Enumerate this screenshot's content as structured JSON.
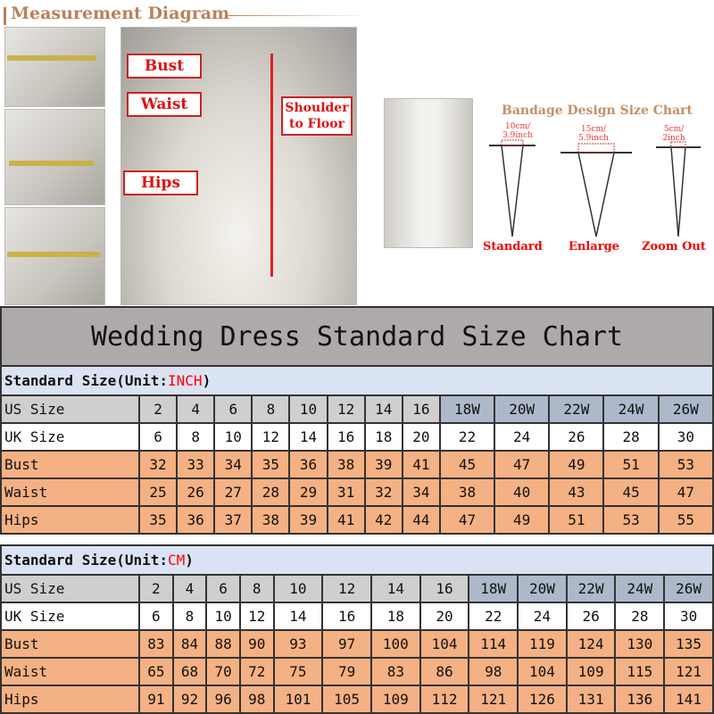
{
  "diagram": {
    "title": "Measurement Diagram",
    "labels": {
      "bust": "Bust",
      "waist": "Waist",
      "hips": "Hips",
      "shoulder": "Shoulder to Floor"
    }
  },
  "bandage": {
    "title": "Bandage Design Size Chart",
    "items": [
      {
        "name": "Standard",
        "size": "10cm/ 3.9inch"
      },
      {
        "name": "Enlarge",
        "size": "15cm/ 5.9inch"
      },
      {
        "name": "Zoom Out",
        "size": "5cm/ 2inch"
      }
    ]
  },
  "chart": {
    "title": "Wedding Dress Standard Size Chart",
    "inch": {
      "prefix": "Standard Size(Unit:",
      "unit": "INCH",
      "suffix": ")",
      "rows": [
        {
          "label": "US Size",
          "values": [
            "2",
            "4",
            "6",
            "8",
            "10",
            "12",
            "14",
            "16",
            "18W",
            "20W",
            "22W",
            "24W",
            "26W"
          ]
        },
        {
          "label": "UK Size",
          "values": [
            "6",
            "8",
            "10",
            "12",
            "14",
            "16",
            "18",
            "20",
            "22",
            "24",
            "26",
            "28",
            "30"
          ]
        },
        {
          "label": "Bust",
          "values": [
            "32",
            "33",
            "34",
            "35",
            "36",
            "38",
            "39",
            "41",
            "45",
            "47",
            "49",
            "51",
            "53"
          ]
        },
        {
          "label": "Waist",
          "values": [
            "25",
            "26",
            "27",
            "28",
            "29",
            "31",
            "32",
            "34",
            "38",
            "40",
            "43",
            "45",
            "47"
          ]
        },
        {
          "label": "Hips",
          "values": [
            "35",
            "36",
            "37",
            "38",
            "39",
            "41",
            "42",
            "44",
            "47",
            "49",
            "51",
            "53",
            "55"
          ]
        }
      ]
    },
    "cm": {
      "prefix": "Standard Size(Unit:",
      "unit": "CM",
      "suffix": ")",
      "rows": [
        {
          "label": "US Size",
          "values": [
            "2",
            "4",
            "6",
            "8",
            "10",
            "12",
            "14",
            "16",
            "18W",
            "20W",
            "22W",
            "24W",
            "26W"
          ]
        },
        {
          "label": "UK Size",
          "values": [
            "6",
            "8",
            "10",
            "12",
            "14",
            "16",
            "18",
            "20",
            "22",
            "24",
            "26",
            "28",
            "30"
          ]
        },
        {
          "label": "Bust",
          "values": [
            "83",
            "84",
            "88",
            "90",
            "93",
            "97",
            "100",
            "104",
            "114",
            "119",
            "124",
            "130",
            "135"
          ]
        },
        {
          "label": "Waist",
          "values": [
            "65",
            "68",
            "70",
            "72",
            "75",
            "79",
            "83",
            "86",
            "98",
            "104",
            "109",
            "115",
            "121"
          ]
        },
        {
          "label": "Hips",
          "values": [
            "91",
            "92",
            "96",
            "98",
            "101",
            "105",
            "109",
            "112",
            "121",
            "126",
            "131",
            "136",
            "141"
          ]
        }
      ]
    }
  },
  "colors": {
    "size_row": "#d0cece",
    "plus_size": "#adb9ca",
    "measure_row": "#f4b183",
    "section": "#dae3f3",
    "title_bg": "#aeaaaa",
    "unit": "#ff0000"
  }
}
